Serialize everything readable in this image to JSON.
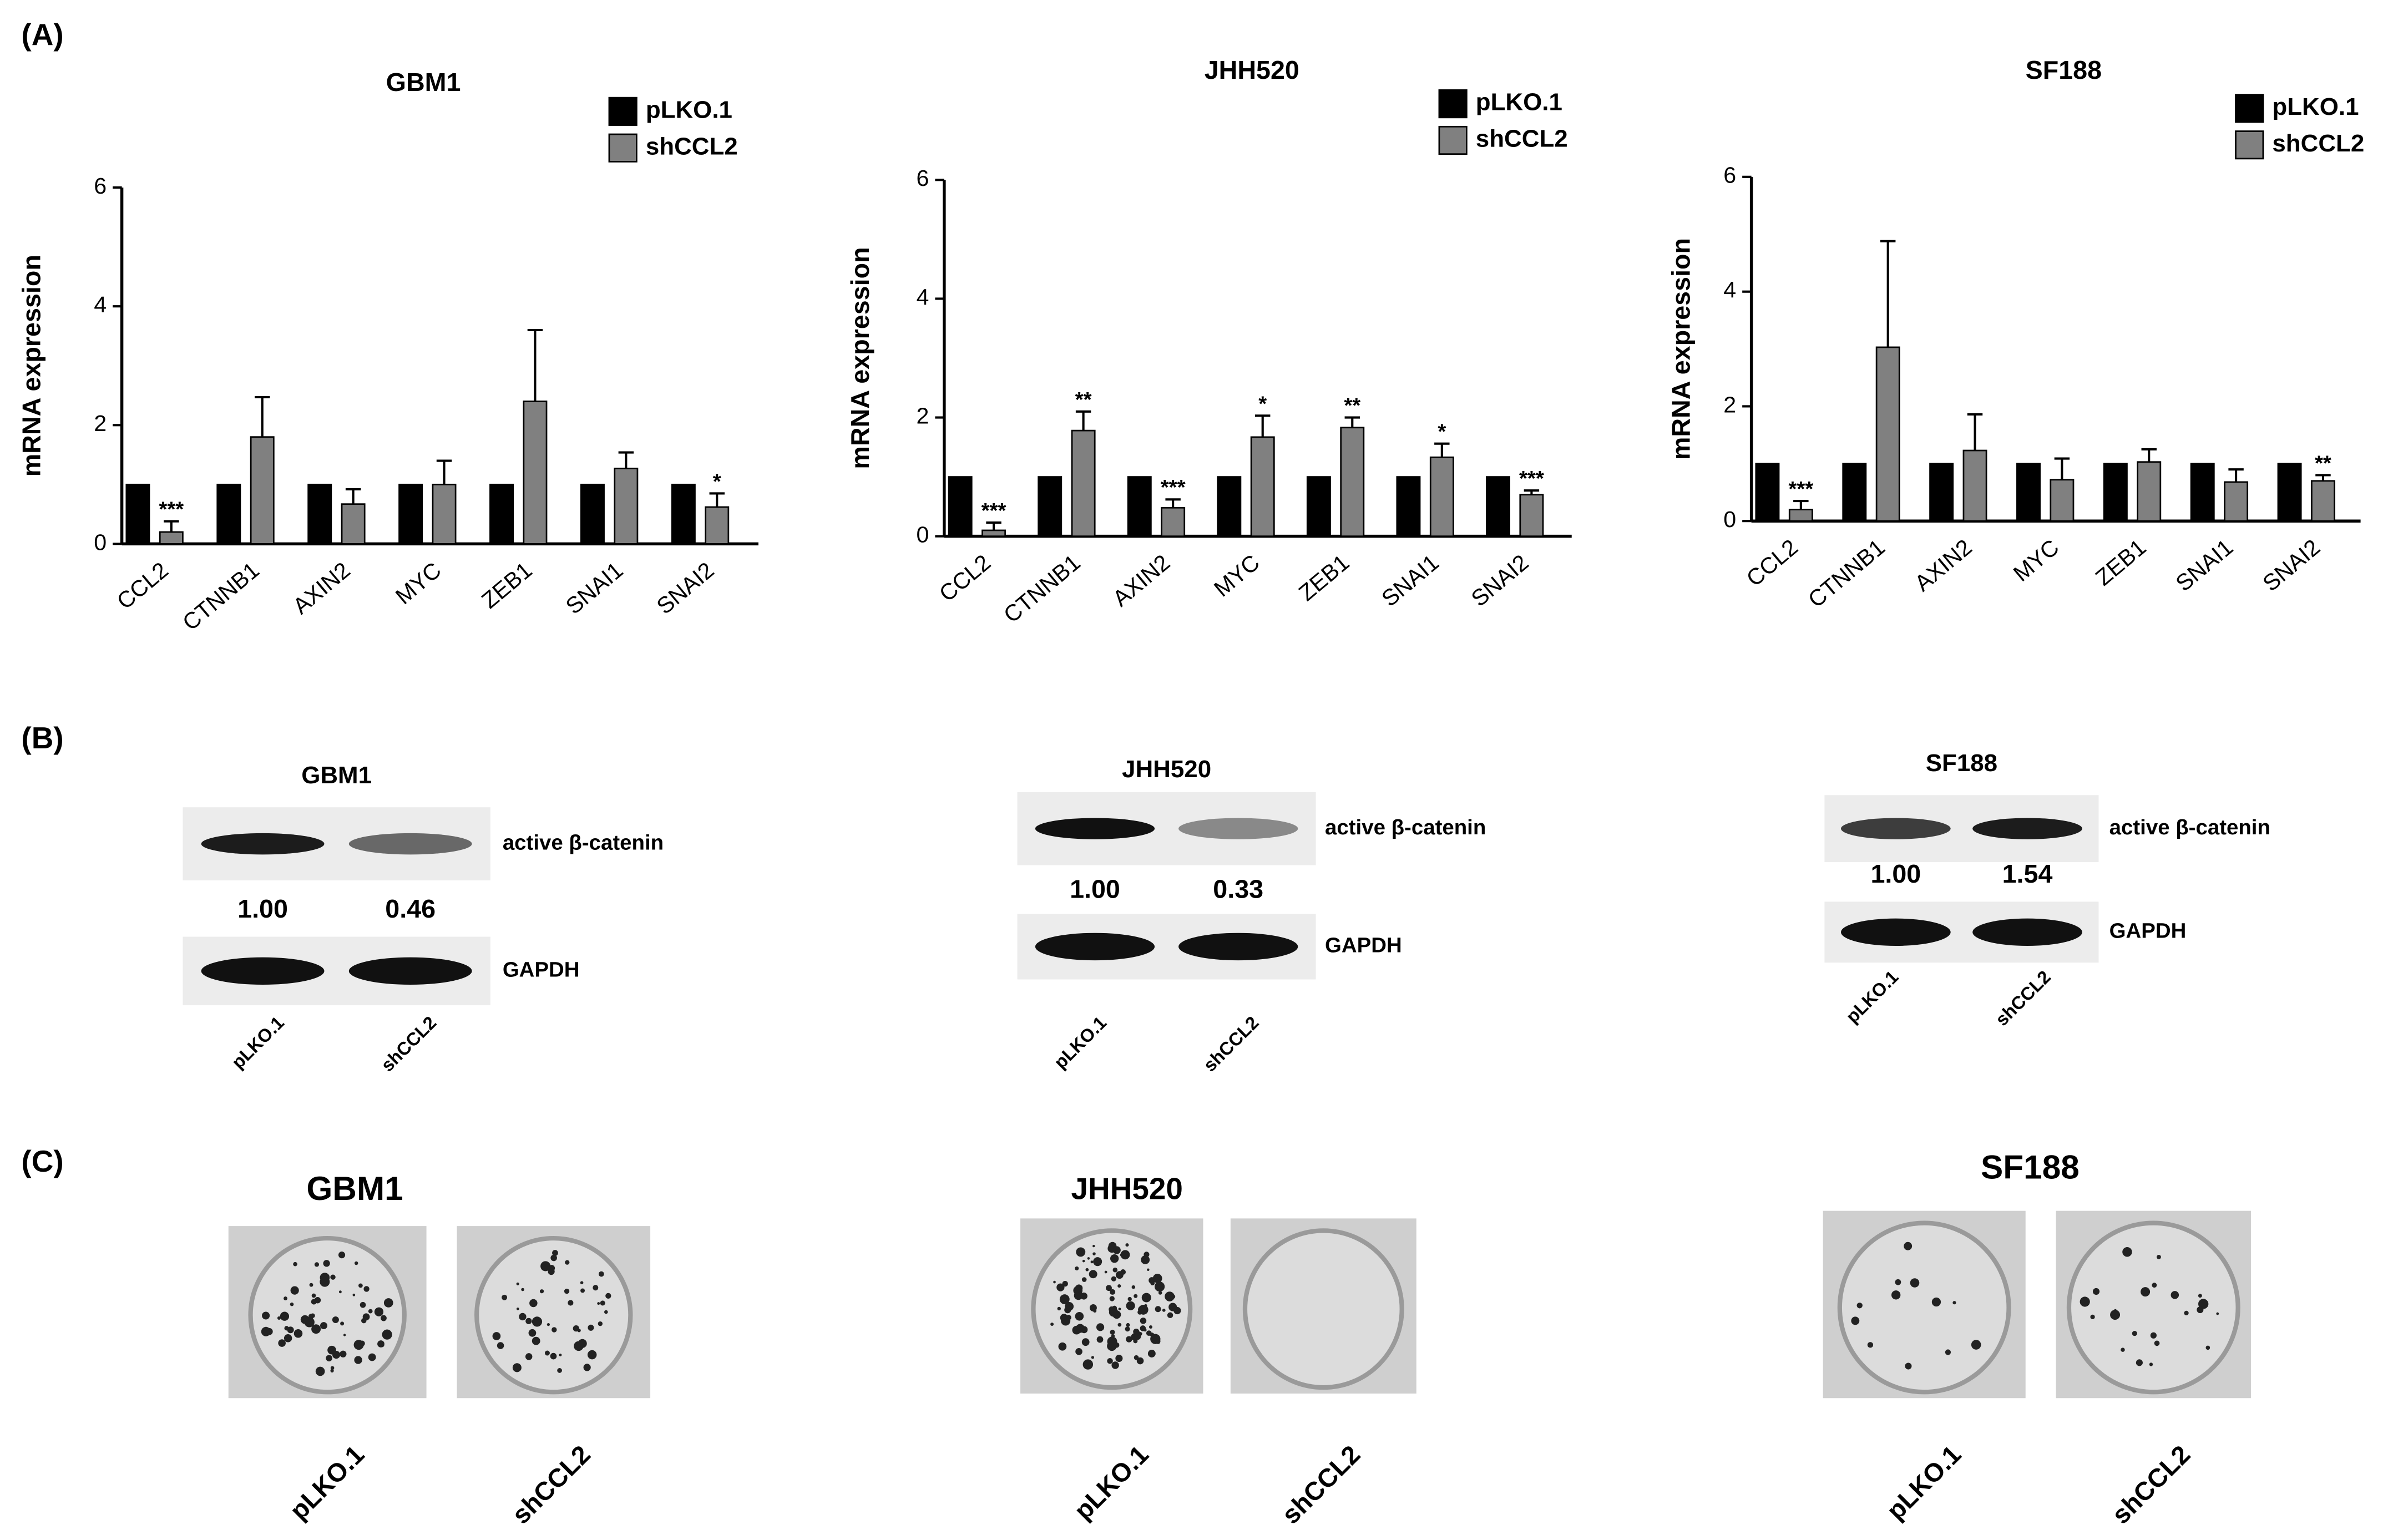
{
  "chart_data": [
    {
      "type": "bar",
      "title": "GBM1",
      "ylabel": "mRNA expression",
      "categories": [
        "CCL2",
        "CTNNB1",
        "AXIN2",
        "MYC",
        "ZEB1",
        "SNAI1",
        "SNAI2"
      ],
      "series": [
        {
          "name": "pLKO.1",
          "color": "#000000",
          "values": [
            1,
            1,
            1,
            1,
            1,
            1,
            1
          ]
        },
        {
          "name": "shCCL2",
          "color": "#808080",
          "values": [
            0.2,
            1.8,
            0.67,
            1.0,
            2.4,
            1.27,
            0.62
          ],
          "errors": [
            0.18,
            0.67,
            0.25,
            0.4,
            1.2,
            0.27,
            0.23
          ],
          "annotations": [
            "***",
            null,
            null,
            null,
            null,
            null,
            "*"
          ]
        }
      ],
      "ylim": [
        0,
        6
      ],
      "yticks": [
        0,
        2,
        4,
        6
      ],
      "legend": "top-right"
    },
    {
      "type": "bar",
      "title": "JHH520",
      "ylabel": "mRNA expression",
      "categories": [
        "CCL2",
        "CTNNB1",
        "AXIN2",
        "MYC",
        "ZEB1",
        "SNAI1",
        "SNAI2"
      ],
      "series": [
        {
          "name": "pLKO.1",
          "color": "#000000",
          "values": [
            1,
            1,
            1,
            1,
            1,
            1,
            1
          ]
        },
        {
          "name": "shCCL2",
          "color": "#808080",
          "values": [
            0.1,
            1.78,
            0.48,
            1.67,
            1.83,
            1.33,
            0.7
          ],
          "errors": [
            0.13,
            0.32,
            0.14,
            0.36,
            0.17,
            0.23,
            0.07
          ],
          "annotations": [
            "***",
            "**",
            "***",
            "*",
            "**",
            "*",
            "***"
          ]
        }
      ],
      "ylim": [
        0,
        6
      ],
      "yticks": [
        0,
        2,
        4,
        6
      ],
      "legend": "top-right"
    },
    {
      "type": "bar",
      "title": "SF188",
      "ylabel": "mRNA expression",
      "categories": [
        "CCL2",
        "CTNNB1",
        "AXIN2",
        "MYC",
        "ZEB1",
        "SNAI1",
        "SNAI2"
      ],
      "series": [
        {
          "name": "pLKO.1",
          "color": "#000000",
          "values": [
            1,
            1,
            1,
            1,
            1,
            1,
            1
          ]
        },
        {
          "name": "shCCL2",
          "color": "#808080",
          "values": [
            0.2,
            3.03,
            1.23,
            0.72,
            1.03,
            0.68,
            0.7
          ],
          "errors": [
            0.15,
            1.85,
            0.63,
            0.37,
            0.22,
            0.22,
            0.1
          ],
          "annotations": [
            "***",
            null,
            null,
            null,
            null,
            null,
            "**"
          ]
        }
      ],
      "ylim": [
        0,
        6
      ],
      "yticks": [
        0,
        2,
        4,
        6
      ],
      "legend": "top-right"
    }
  ],
  "panels": [
    "(A)",
    "(B)",
    "(C)"
  ],
  "blots": [
    {
      "title": "GBM1",
      "band_label": "active β-catenin",
      "quantities": [
        "1.00",
        "0.46"
      ],
      "loading_label": "GAPDH",
      "lanes": [
        "pLKO.1",
        "shCCL2"
      ]
    },
    {
      "title": "JHH520",
      "band_label": "active β-catenin",
      "quantities": [
        "1.00",
        "0.33"
      ],
      "loading_label": "GAPDH",
      "lanes": [
        "pLKO.1",
        "shCCL2"
      ]
    },
    {
      "title": "SF188",
      "band_label": "active β-catenin",
      "quantities": [
        "1.00",
        "1.54"
      ],
      "loading_label": "GAPDH",
      "lanes": [
        "pLKO.1",
        "shCCL2"
      ]
    }
  ],
  "colonies": [
    {
      "title": "GBM1",
      "lanes": [
        "pLKO.1",
        "shCCL2"
      ]
    },
    {
      "title": "JHH520",
      "lanes": [
        "pLKO.1",
        "shCCL2"
      ]
    },
    {
      "title": "SF188",
      "lanes": [
        "pLKO.1",
        "shCCL2"
      ]
    }
  ]
}
